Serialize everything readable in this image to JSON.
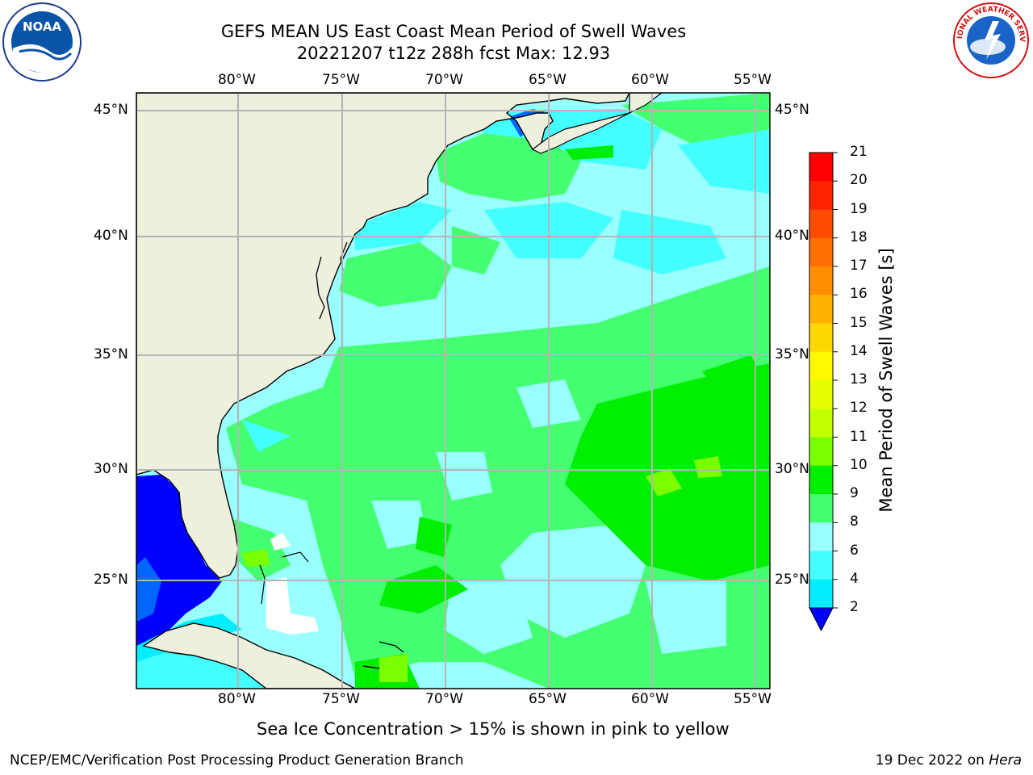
{
  "header": {
    "title": "GEFS MEAN US East Coast Mean Period of Swell Waves",
    "subtitle": "20221207 t12z 288h fcst   Max: 12.93"
  },
  "map": {
    "region": "US East Coast / Western North Atlantic",
    "lon_labels": [
      "80°W",
      "75°W",
      "70°W",
      "65°W",
      "60°W",
      "55°W"
    ],
    "lat_labels": [
      "45°N",
      "40°N",
      "35°N",
      "30°N",
      "25°N"
    ],
    "colors": {
      "land": "#efefde",
      "ocean_default": "#99ffff",
      "grid": "#b4b4b4"
    }
  },
  "colorbar": {
    "label": "Mean Period of Swell Waves [s]",
    "ticks": [
      "21",
      "20",
      "19",
      "18",
      "17",
      "16",
      "15",
      "14",
      "13",
      "12",
      "11",
      "10",
      "9",
      "8",
      "6",
      "4",
      "2"
    ],
    "colors": [
      "#ff0000",
      "#ff2200",
      "#ff4b00",
      "#ff6e00",
      "#ff8f00",
      "#ffb200",
      "#ffd700",
      "#fff700",
      "#e6ff00",
      "#c4ff00",
      "#7aff00",
      "#00ee00",
      "#44ff70",
      "#99ffff",
      "#44ffff",
      "#00eeff",
      "#0066ff",
      "#0000ff"
    ]
  },
  "footer": {
    "caption": "Sea Ice Concentration > 15% is shown in pink to yellow",
    "credit": "NCEP/EMC/Verification Post Processing Product Generation Branch",
    "date": "19 Dec 2022 on",
    "host": "Hera"
  },
  "logos": {
    "noaa_text": "NOAA",
    "nws_text": "NATIONAL WEATHER SERVICE"
  }
}
